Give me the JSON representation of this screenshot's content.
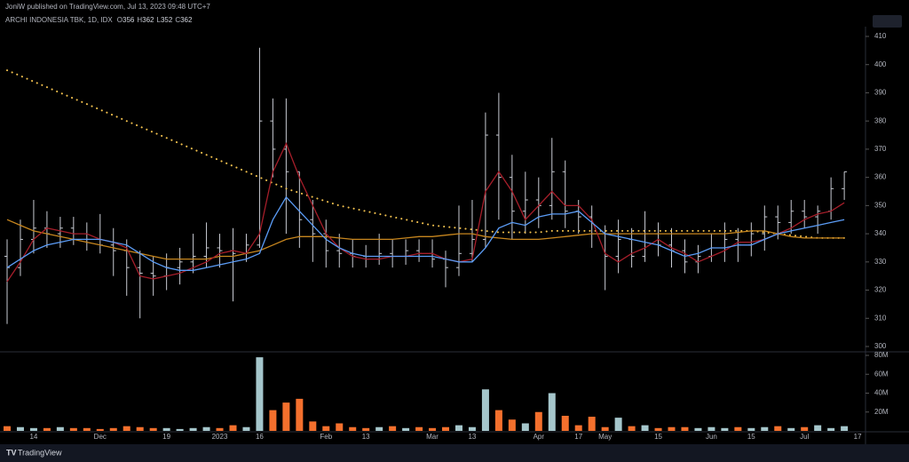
{
  "header": "JoniW published on TradingView.com, Jul 13, 2023 09:48 UTC+7",
  "footer": "TradingView",
  "chart_data": {
    "type": "ohlc",
    "legend": {
      "symbol": "ARCHI INDONESIA TBK, 1D, IDX",
      "ohlc": [
        {
          "label": "O",
          "value": 356
        },
        {
          "label": "H",
          "value": 362
        },
        {
          "label": "L",
          "value": 352
        },
        {
          "label": "C",
          "value": 362
        }
      ]
    },
    "categories": [
      null,
      null,
      "14",
      null,
      null,
      null,
      null,
      "Dec",
      null,
      null,
      null,
      null,
      "19",
      null,
      null,
      null,
      "2023",
      null,
      null,
      "16",
      null,
      null,
      null,
      null,
      "Feb",
      null,
      null,
      "13",
      null,
      null,
      null,
      null,
      "Mar",
      null,
      null,
      "13",
      null,
      null,
      null,
      null,
      "Apr",
      null,
      null,
      "17",
      null,
      "May",
      null,
      null,
      null,
      "15",
      null,
      null,
      null,
      "Jun",
      null,
      null,
      "15",
      null,
      null,
      null,
      "Jul",
      null,
      null,
      null,
      "17"
    ],
    "open": [
      332,
      328,
      338,
      342,
      340,
      342,
      340,
      338,
      336,
      334,
      328,
      326,
      325,
      328,
      330,
      332,
      335,
      334,
      333,
      336,
      380,
      370,
      362,
      345,
      340,
      334,
      333,
      332,
      331,
      333,
      332,
      334,
      333,
      331,
      328,
      333,
      338,
      375,
      360,
      348,
      352,
      350,
      362,
      348,
      346,
      340,
      332,
      338,
      332,
      340,
      336,
      334,
      330,
      332,
      335,
      338,
      336,
      340,
      346,
      344,
      348,
      346,
      348,
      356,
      null
    ],
    "high": [
      338,
      345,
      352,
      348,
      346,
      346,
      344,
      347,
      342,
      338,
      334,
      332,
      333,
      335,
      340,
      344,
      340,
      342,
      340,
      406,
      388,
      388,
      362,
      352,
      345,
      340,
      338,
      336,
      340,
      338,
      338,
      338,
      338,
      334,
      350,
      352,
      383,
      390,
      368,
      362,
      360,
      374,
      366,
      352,
      350,
      343,
      345,
      342,
      348,
      344,
      342,
      338,
      336,
      340,
      344,
      342,
      344,
      350,
      350,
      352,
      352,
      350,
      360,
      362,
      null
    ],
    "low": [
      308,
      325,
      333,
      335,
      335,
      336,
      334,
      333,
      325,
      318,
      310,
      318,
      320,
      322,
      326,
      328,
      328,
      316,
      330,
      335,
      360,
      340,
      335,
      330,
      328,
      328,
      328,
      328,
      329,
      328,
      329,
      330,
      328,
      321,
      325,
      330,
      335,
      345,
      338,
      340,
      342,
      345,
      342,
      340,
      335,
      320,
      326,
      328,
      330,
      332,
      328,
      326,
      326,
      330,
      330,
      330,
      332,
      334,
      338,
      340,
      342,
      340,
      345,
      352,
      null
    ],
    "close": [
      328,
      338,
      342,
      340,
      342,
      340,
      338,
      336,
      334,
      328,
      326,
      325,
      328,
      330,
      332,
      335,
      334,
      333,
      336,
      380,
      370,
      362,
      345,
      340,
      334,
      333,
      332,
      331,
      333,
      332,
      334,
      333,
      331,
      328,
      333,
      338,
      375,
      360,
      348,
      352,
      350,
      362,
      348,
      346,
      340,
      332,
      338,
      332,
      340,
      336,
      334,
      330,
      332,
      335,
      338,
      336,
      340,
      346,
      344,
      348,
      346,
      348,
      356,
      362,
      null
    ],
    "bar_color": "#c8cbd3",
    "lines": [
      {
        "color": "#f2c14e",
        "dotted": true,
        "values": [
          398,
          396,
          394,
          392,
          390,
          388,
          386,
          384,
          382,
          380,
          378,
          376,
          374,
          372,
          370,
          368,
          366,
          364,
          362,
          360,
          358,
          356,
          354.5,
          353,
          351.5,
          350,
          349,
          348,
          347,
          346,
          345,
          344,
          343,
          342.5,
          342,
          341.5,
          341,
          340.5,
          340.5,
          340.5,
          340.5,
          341,
          341,
          341,
          341,
          341,
          341,
          341,
          341,
          341,
          341,
          341,
          341,
          341,
          341,
          341,
          341,
          340.5,
          340,
          339.5,
          339,
          338.5,
          338.5,
          338.5,
          null
        ]
      },
      {
        "color": "#c7861e",
        "dotted": false,
        "values": [
          345,
          343,
          341,
          340,
          339,
          338,
          337,
          336,
          335,
          334,
          333,
          332,
          331,
          331,
          331,
          331,
          332,
          332,
          333,
          334,
          336,
          338,
          339,
          339,
          339,
          338.5,
          338,
          338,
          338,
          338,
          338.5,
          339,
          339,
          339.5,
          340,
          340,
          339,
          338.5,
          338,
          338,
          338,
          338.5,
          339,
          339.5,
          340,
          340,
          340,
          340,
          340,
          340,
          340,
          340,
          340,
          340,
          340,
          340.5,
          341,
          341,
          340,
          339,
          338.5,
          338.5,
          338.5,
          338.5,
          null
        ]
      },
      {
        "color": "#a61e2a",
        "dotted": false,
        "values": [
          323,
          330,
          338,
          342,
          341,
          340,
          340,
          338,
          337,
          335,
          325,
          324,
          325,
          326,
          328,
          330,
          333,
          334,
          333,
          340,
          362,
          372,
          360,
          350,
          340,
          335,
          332,
          331,
          331,
          332,
          332,
          333,
          333,
          331,
          330,
          331,
          355,
          362,
          355,
          345,
          350,
          355,
          350,
          350,
          345,
          333,
          330,
          333,
          335,
          338,
          335,
          333,
          330,
          332,
          334,
          337,
          337,
          338,
          340,
          342,
          345,
          347,
          348,
          351,
          null
        ]
      },
      {
        "color": "#5b9cf6",
        "dotted": false,
        "values": [
          328,
          331,
          334,
          336,
          337,
          338,
          338,
          338,
          337,
          336,
          333,
          330,
          328,
          327,
          327,
          328,
          329,
          330,
          331,
          333,
          345,
          353,
          348,
          343,
          338,
          335,
          333,
          332,
          332,
          332,
          332,
          332,
          332,
          331,
          330,
          330,
          335,
          342,
          344,
          343,
          346,
          347,
          347,
          348,
          344,
          340,
          339,
          338,
          337,
          336,
          334,
          332,
          333,
          335,
          335,
          336,
          336,
          338,
          340,
          341,
          342,
          343,
          344,
          345,
          null
        ]
      }
    ],
    "ylim": [
      300,
      410
    ],
    "yticks": [
      300,
      310,
      320,
      330,
      340,
      350,
      360,
      370,
      380,
      390,
      400,
      410
    ],
    "volume": {
      "values": [
        5,
        4,
        3,
        3,
        4,
        3,
        3,
        2,
        3,
        5,
        4,
        3,
        3,
        2,
        3,
        4,
        3,
        6,
        4,
        78,
        22,
        30,
        34,
        10,
        5,
        8,
        4,
        3,
        4,
        5,
        3,
        4,
        3,
        4,
        6,
        4,
        44,
        22,
        12,
        8,
        20,
        40,
        16,
        6,
        15,
        4,
        14,
        5,
        6,
        3,
        4,
        4,
        3,
        4,
        3,
        4,
        3,
        4,
        5,
        3,
        4,
        6,
        3,
        5,
        null
      ],
      "up_color": "#a5c6cb",
      "down_color": "#f4702d",
      "ylim": [
        0,
        80
      ],
      "yticks": [
        {
          "value": 20,
          "label": "20M"
        },
        {
          "value": 40,
          "label": "40M"
        },
        {
          "value": 60,
          "label": "60M"
        },
        {
          "value": 80,
          "label": "80M"
        }
      ]
    }
  }
}
